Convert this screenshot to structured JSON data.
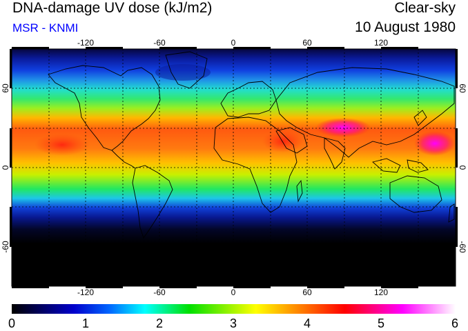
{
  "header": {
    "title": "DNA-damage UV dose (kJ/m2)",
    "subtitle": "MSR - KNMI",
    "condition": "Clear-sky",
    "date": "10 August 1980"
  },
  "map": {
    "lon_ticks": [
      "-120",
      "-60",
      "0",
      "60",
      "120"
    ],
    "lat_ticks": [
      "60",
      "0",
      "-60"
    ],
    "lat_ticks_right": [
      "60",
      "0",
      "-60"
    ],
    "lon_range": [
      -180,
      180
    ],
    "lat_range": [
      -90,
      90
    ],
    "grid_dotted": true
  },
  "colorbar": {
    "labels": [
      "0",
      "1",
      "2",
      "3",
      "4",
      "5",
      "6"
    ],
    "range": [
      0,
      6
    ],
    "colors": [
      "#000000",
      "#0000cc",
      "#00ffff",
      "#00e000",
      "#ffff00",
      "#ff0000",
      "#ff00ff",
      "#ffffff"
    ]
  },
  "colors": {
    "subtitle": "#0000ff",
    "coastline": "#000000"
  }
}
